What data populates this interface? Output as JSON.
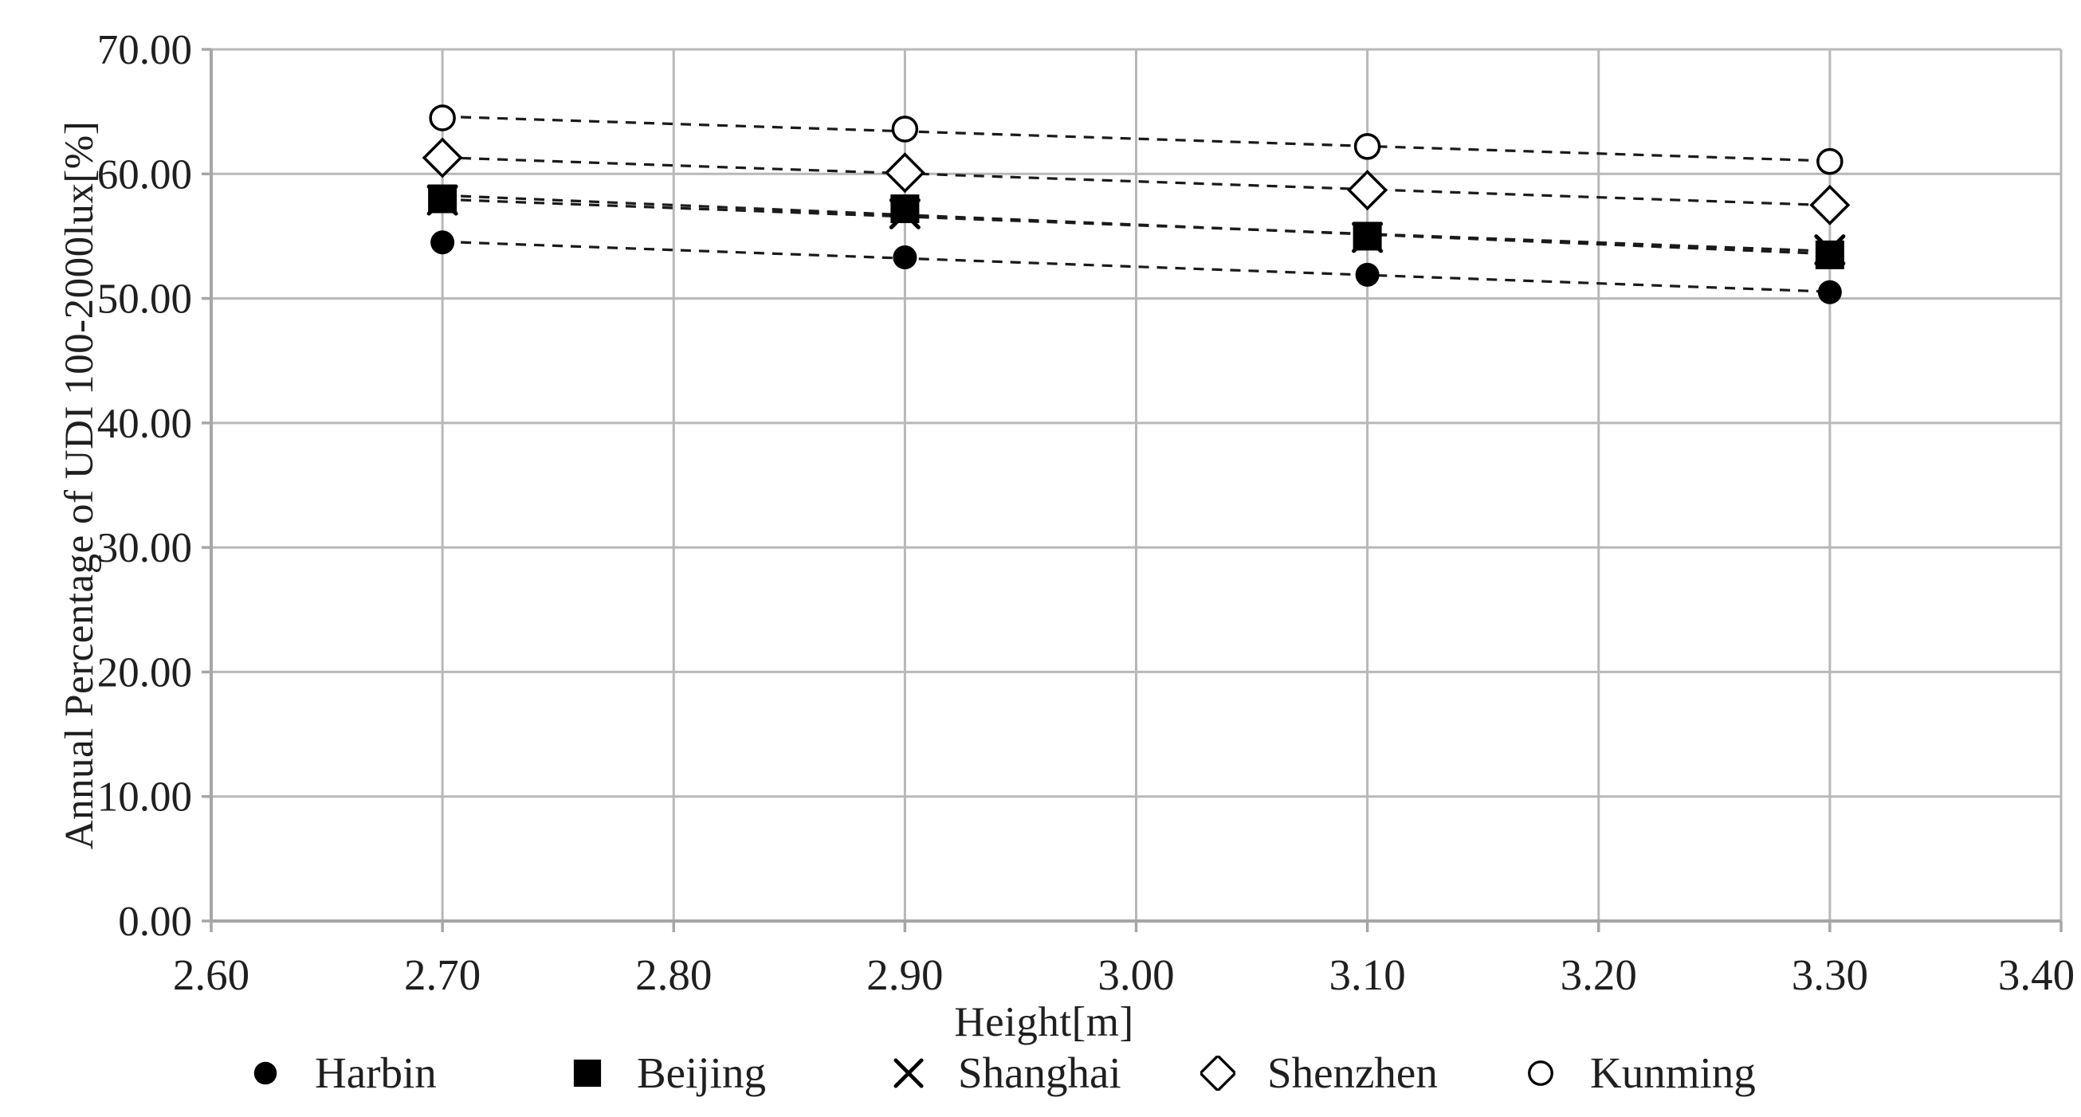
{
  "page": {
    "background": "#ffffff"
  },
  "chart_data": {
    "type": "scatter",
    "title": "",
    "xlabel": "Height[m]",
    "ylabel": "Annual Percentage of UDI 100-2000lux[%]",
    "xlim": [
      2.6,
      3.4
    ],
    "ylim": [
      0,
      70
    ],
    "x_tick_values": [
      2.6,
      2.7,
      2.8,
      2.9,
      3.0,
      3.1,
      3.2,
      3.3,
      3.4
    ],
    "x_tick_labels": [
      "2.60",
      "2.70",
      "2.80",
      "2.90",
      "3.00",
      "3.10",
      "3.20",
      "3.30",
      "3.40"
    ],
    "y_tick_values": [
      0,
      10,
      20,
      30,
      40,
      50,
      60,
      70
    ],
    "y_tick_labels": [
      "0.00",
      "10.00",
      "20.00",
      "30.00",
      "40.00",
      "50.00",
      "60.00",
      "70.00"
    ],
    "grid": true,
    "legend_position": "bottom",
    "x": [
      2.7,
      2.9,
      3.1,
      3.3
    ],
    "series": [
      {
        "name": "Harbin",
        "marker": "filled-circle",
        "line_style": "dashed-trendline",
        "values": [
          54.5,
          53.3,
          51.9,
          50.5
        ]
      },
      {
        "name": "Beijing",
        "marker": "filled-square",
        "line_style": "dashed-trendline",
        "values": [
          58.0,
          57.2,
          55.0,
          53.5
        ]
      },
      {
        "name": "Shanghai",
        "marker": "x-cross",
        "line_style": "dashed-trendline",
        "values": [
          57.9,
          56.8,
          54.9,
          53.9
        ]
      },
      {
        "name": "Shenzhen",
        "marker": "open-diamond",
        "line_style": "dashed-trendline",
        "values": [
          61.3,
          60.1,
          58.7,
          57.5
        ]
      },
      {
        "name": "Kunming",
        "marker": "open-circle",
        "line_style": "dashed-trendline",
        "values": [
          64.5,
          63.6,
          62.2,
          61.0
        ]
      }
    ],
    "colors": {
      "marker": "#000000",
      "trendline": "#1a1a1a",
      "gridline": "#b8b8b8",
      "axis": "#a6a6a6",
      "text": "#1f1f1f",
      "background": "#ffffff"
    }
  }
}
